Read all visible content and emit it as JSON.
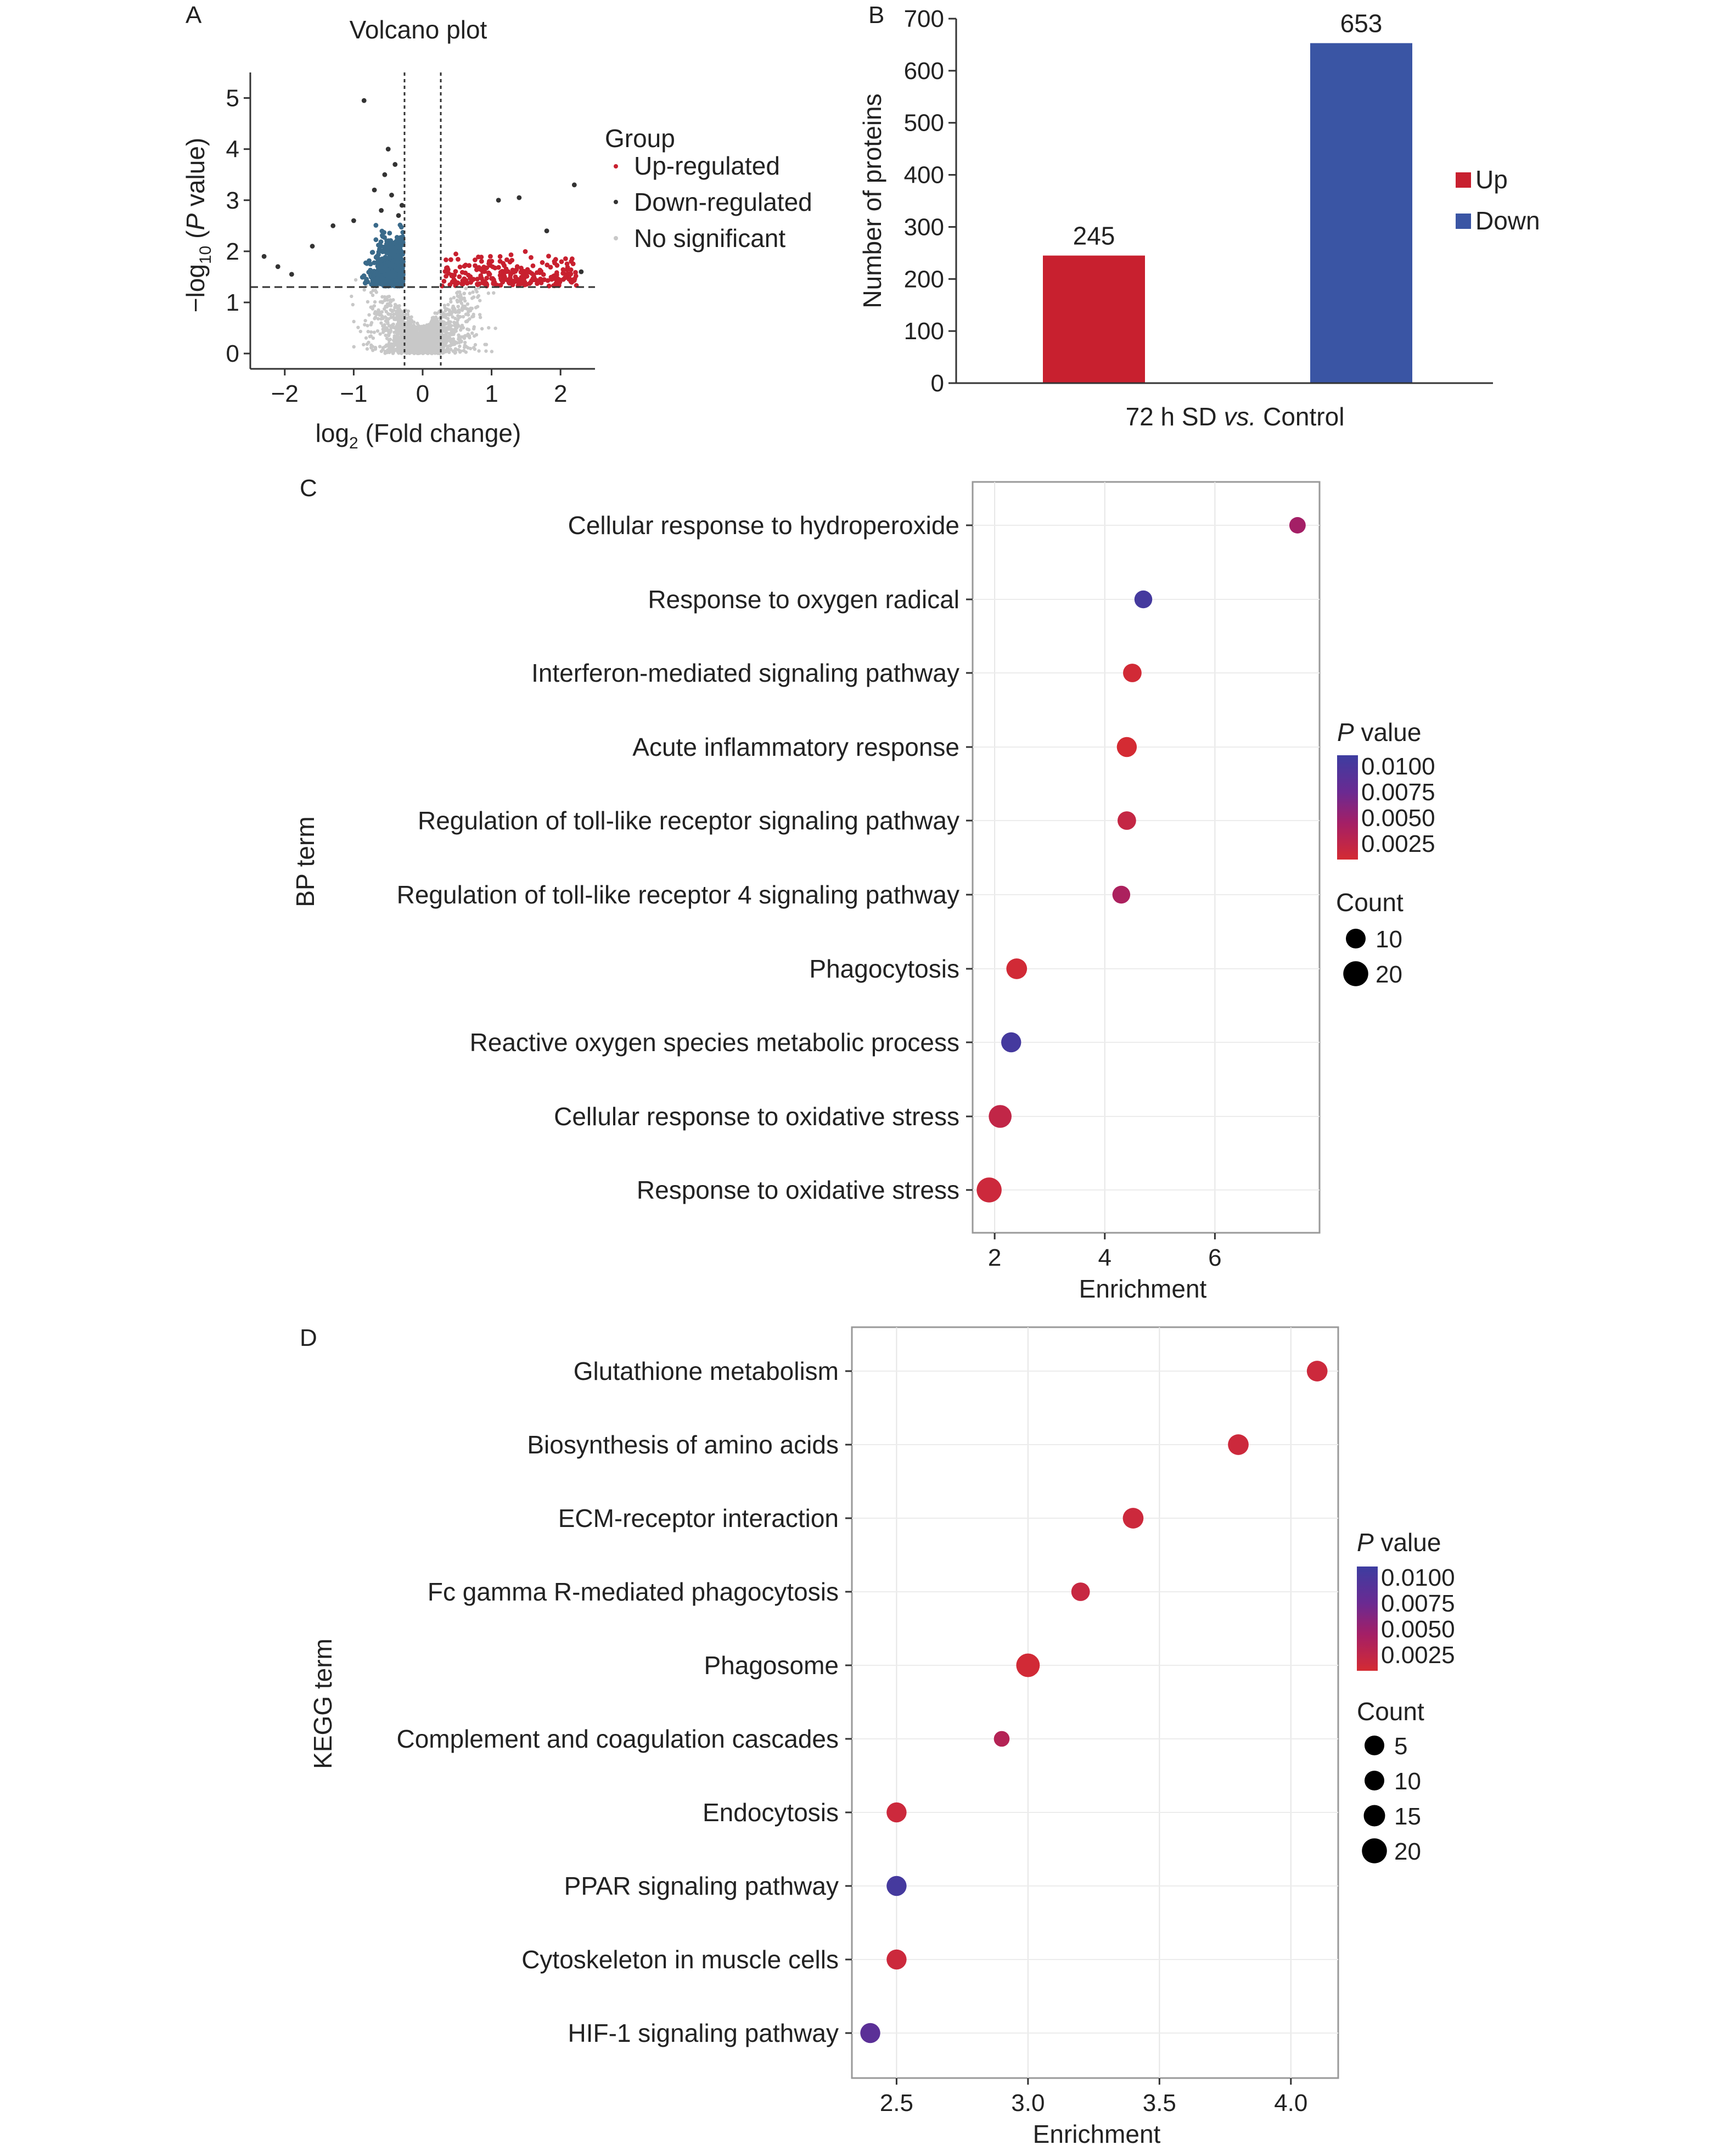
{
  "panels": {
    "A": "A",
    "B": "B",
    "C": "C",
    "D": "D"
  },
  "volcano": {
    "title": "Volcano plot",
    "xlabel_main": "log",
    "xlabel_sub": "2",
    "xlabel_rest": " (Fold change)",
    "ylabel_pre": "−log",
    "ylabel_sub": "10",
    "ylabel_open": " (",
    "ylabel_italic": "P",
    "ylabel_rest": " value)",
    "xticks": [
      "−2",
      "−1",
      "0",
      "1",
      "2"
    ],
    "yticks": [
      "0",
      "1",
      "2",
      "3",
      "4",
      "5"
    ],
    "legend_title": "Group",
    "legend_items": [
      "Up-regulated",
      "Down-regulated",
      "No significant"
    ],
    "colors": {
      "up": "#c8202f",
      "down": "#3a6a8a",
      "down_far": "#3d3da0",
      "ns": "#c8c8c8",
      "outlier": "#333333"
    }
  },
  "chart_data": [
    {
      "type": "scatter",
      "x_range": [
        -2.5,
        2.5
      ],
      "y_range": [
        -0.3,
        5.5
      ],
      "thresholds": {
        "x": [
          -0.263,
          0.263
        ],
        "y": 1.3
      },
      "groups": [
        {
          "name": "Up-regulated",
          "count": 245,
          "x_range": [
            0.263,
            2.4
          ],
          "y_range": [
            1.3,
            3.3
          ]
        },
        {
          "name": "Down-regulated",
          "count": 653,
          "x_range": [
            -2.4,
            -0.263
          ],
          "y_range": [
            1.3,
            5.0
          ]
        },
        {
          "name": "No significant",
          "x_range": [
            -2.5,
            2.5
          ],
          "y_range": [
            0,
            1.3
          ]
        }
      ]
    },
    {
      "type": "bar",
      "categories": [
        "Up",
        "Down"
      ],
      "values": [
        245,
        653
      ],
      "colors": [
        "#c8202f",
        "#3a55a4"
      ],
      "ylabel": "Number of proteins",
      "xlabel": "72 h SD vs. Control",
      "ylim": [
        0,
        700
      ],
      "yticks": [
        0,
        100,
        200,
        300,
        400,
        500,
        600,
        700
      ],
      "legend": [
        "Up",
        "Down"
      ],
      "legend_position": "right"
    },
    {
      "type": "scatter",
      "ylabel": "BP term",
      "xlabel": "Enrichment",
      "xlim": [
        1.6,
        7.9
      ],
      "xticks": [
        2,
        4,
        6
      ],
      "terms": [
        "Cellular response to hydroperoxide",
        "Response to oxygen radical",
        "Interferon-mediated signaling pathway",
        "Acute inflammatory response",
        "Regulation of toll-like receptor signaling pathway",
        "Regulation of toll-like receptor 4 signaling pathway",
        "Phagocytosis",
        "Reactive oxygen species metabolic process",
        "Cellular response to oxidative stress",
        "Response to oxidative stress"
      ],
      "enrichment": [
        7.5,
        4.7,
        4.5,
        4.4,
        4.4,
        4.3,
        2.4,
        2.3,
        2.1,
        1.9
      ],
      "p_value": [
        0.004,
        0.0095,
        0.0012,
        0.001,
        0.002,
        0.0035,
        0.0012,
        0.0095,
        0.0022,
        0.0015
      ],
      "count": [
        8,
        10,
        11,
        13,
        11,
        10,
        14,
        13,
        17,
        20
      ],
      "colorbar_title_italic": "P",
      "colorbar_title_rest": " value",
      "colorbar_ticks": [
        "0.0100",
        "0.0075",
        "0.0050",
        "0.0025"
      ],
      "size_title": "Count",
      "size_ticks": [
        "10",
        "20"
      ]
    },
    {
      "type": "scatter",
      "ylabel": "KEGG term",
      "xlabel": "Enrichment",
      "xlim": [
        2.33,
        4.18
      ],
      "xticks": [
        "2.5",
        "3.0",
        "3.5",
        "4.0"
      ],
      "terms": [
        "Glutathione metabolism",
        "Biosynthesis of amino acids",
        "ECM-receptor interaction",
        "Fc gamma R-mediated phagocytosis",
        "Phagosome",
        "Complement and coagulation cascades",
        "Endocytosis",
        "PPAR signaling pathway",
        "Cytoskeleton in muscle cells",
        "HIF-1 signaling pathway"
      ],
      "enrichment": [
        4.1,
        3.8,
        3.4,
        3.2,
        3.0,
        2.9,
        2.5,
        2.5,
        2.5,
        2.4
      ],
      "p_value": [
        0.0015,
        0.0015,
        0.0015,
        0.0018,
        0.0012,
        0.003,
        0.0015,
        0.0095,
        0.0015,
        0.008
      ],
      "count": [
        14,
        14,
        14,
        11,
        18,
        7,
        13,
        13,
        13,
        13
      ],
      "colorbar_title_italic": "P",
      "colorbar_title_rest": " value",
      "colorbar_ticks": [
        "0.0100",
        "0.0075",
        "0.0050",
        "0.0025"
      ],
      "size_title": "Count",
      "size_ticks": [
        "5",
        "10",
        "15",
        "20"
      ]
    }
  ],
  "bar_text": {
    "xlabel_pre": "72 h SD ",
    "xlabel_italic": "vs.",
    "xlabel_post": " Control"
  }
}
